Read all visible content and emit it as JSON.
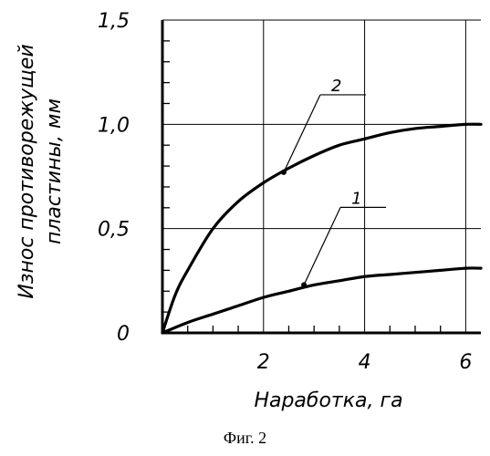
{
  "chart_data": {
    "type": "line",
    "ylabel_lines": [
      "Износ противорежущей",
      "пластины, мм"
    ],
    "xlabel": "Наработка, га",
    "xlim": [
      0,
      6.3
    ],
    "ylim": [
      0,
      1.5
    ],
    "x_ticks": [
      0,
      2,
      4,
      6
    ],
    "x_tick_labels": [
      "0",
      "2",
      "4",
      "6"
    ],
    "y_ticks": [
      0,
      0.5,
      1.0,
      1.5
    ],
    "y_tick_labels": [
      "0",
      "0,5",
      "1,0",
      "1,5"
    ],
    "grid": true,
    "series": [
      {
        "name": "1",
        "x": [
          0,
          0.5,
          1,
          1.5,
          2,
          2.5,
          3,
          3.5,
          4,
          4.5,
          5,
          5.5,
          6,
          6.3
        ],
        "y": [
          0,
          0.05,
          0.09,
          0.13,
          0.17,
          0.2,
          0.23,
          0.25,
          0.27,
          0.28,
          0.29,
          0.3,
          0.31,
          0.31
        ]
      },
      {
        "name": "2",
        "x": [
          0,
          0.25,
          0.5,
          1,
          1.5,
          2,
          2.5,
          3,
          3.5,
          4,
          4.5,
          5,
          5.5,
          6,
          6.3
        ],
        "y": [
          0,
          0.18,
          0.3,
          0.5,
          0.63,
          0.72,
          0.79,
          0.85,
          0.9,
          0.93,
          0.96,
          0.98,
          0.99,
          1.0,
          1.0
        ]
      }
    ],
    "label_points": [
      {
        "name": "1",
        "x": 2.8,
        "y": 0.23
      },
      {
        "name": "2",
        "x": 2.4,
        "y": 0.77
      }
    ]
  },
  "caption": "Фиг. 2"
}
